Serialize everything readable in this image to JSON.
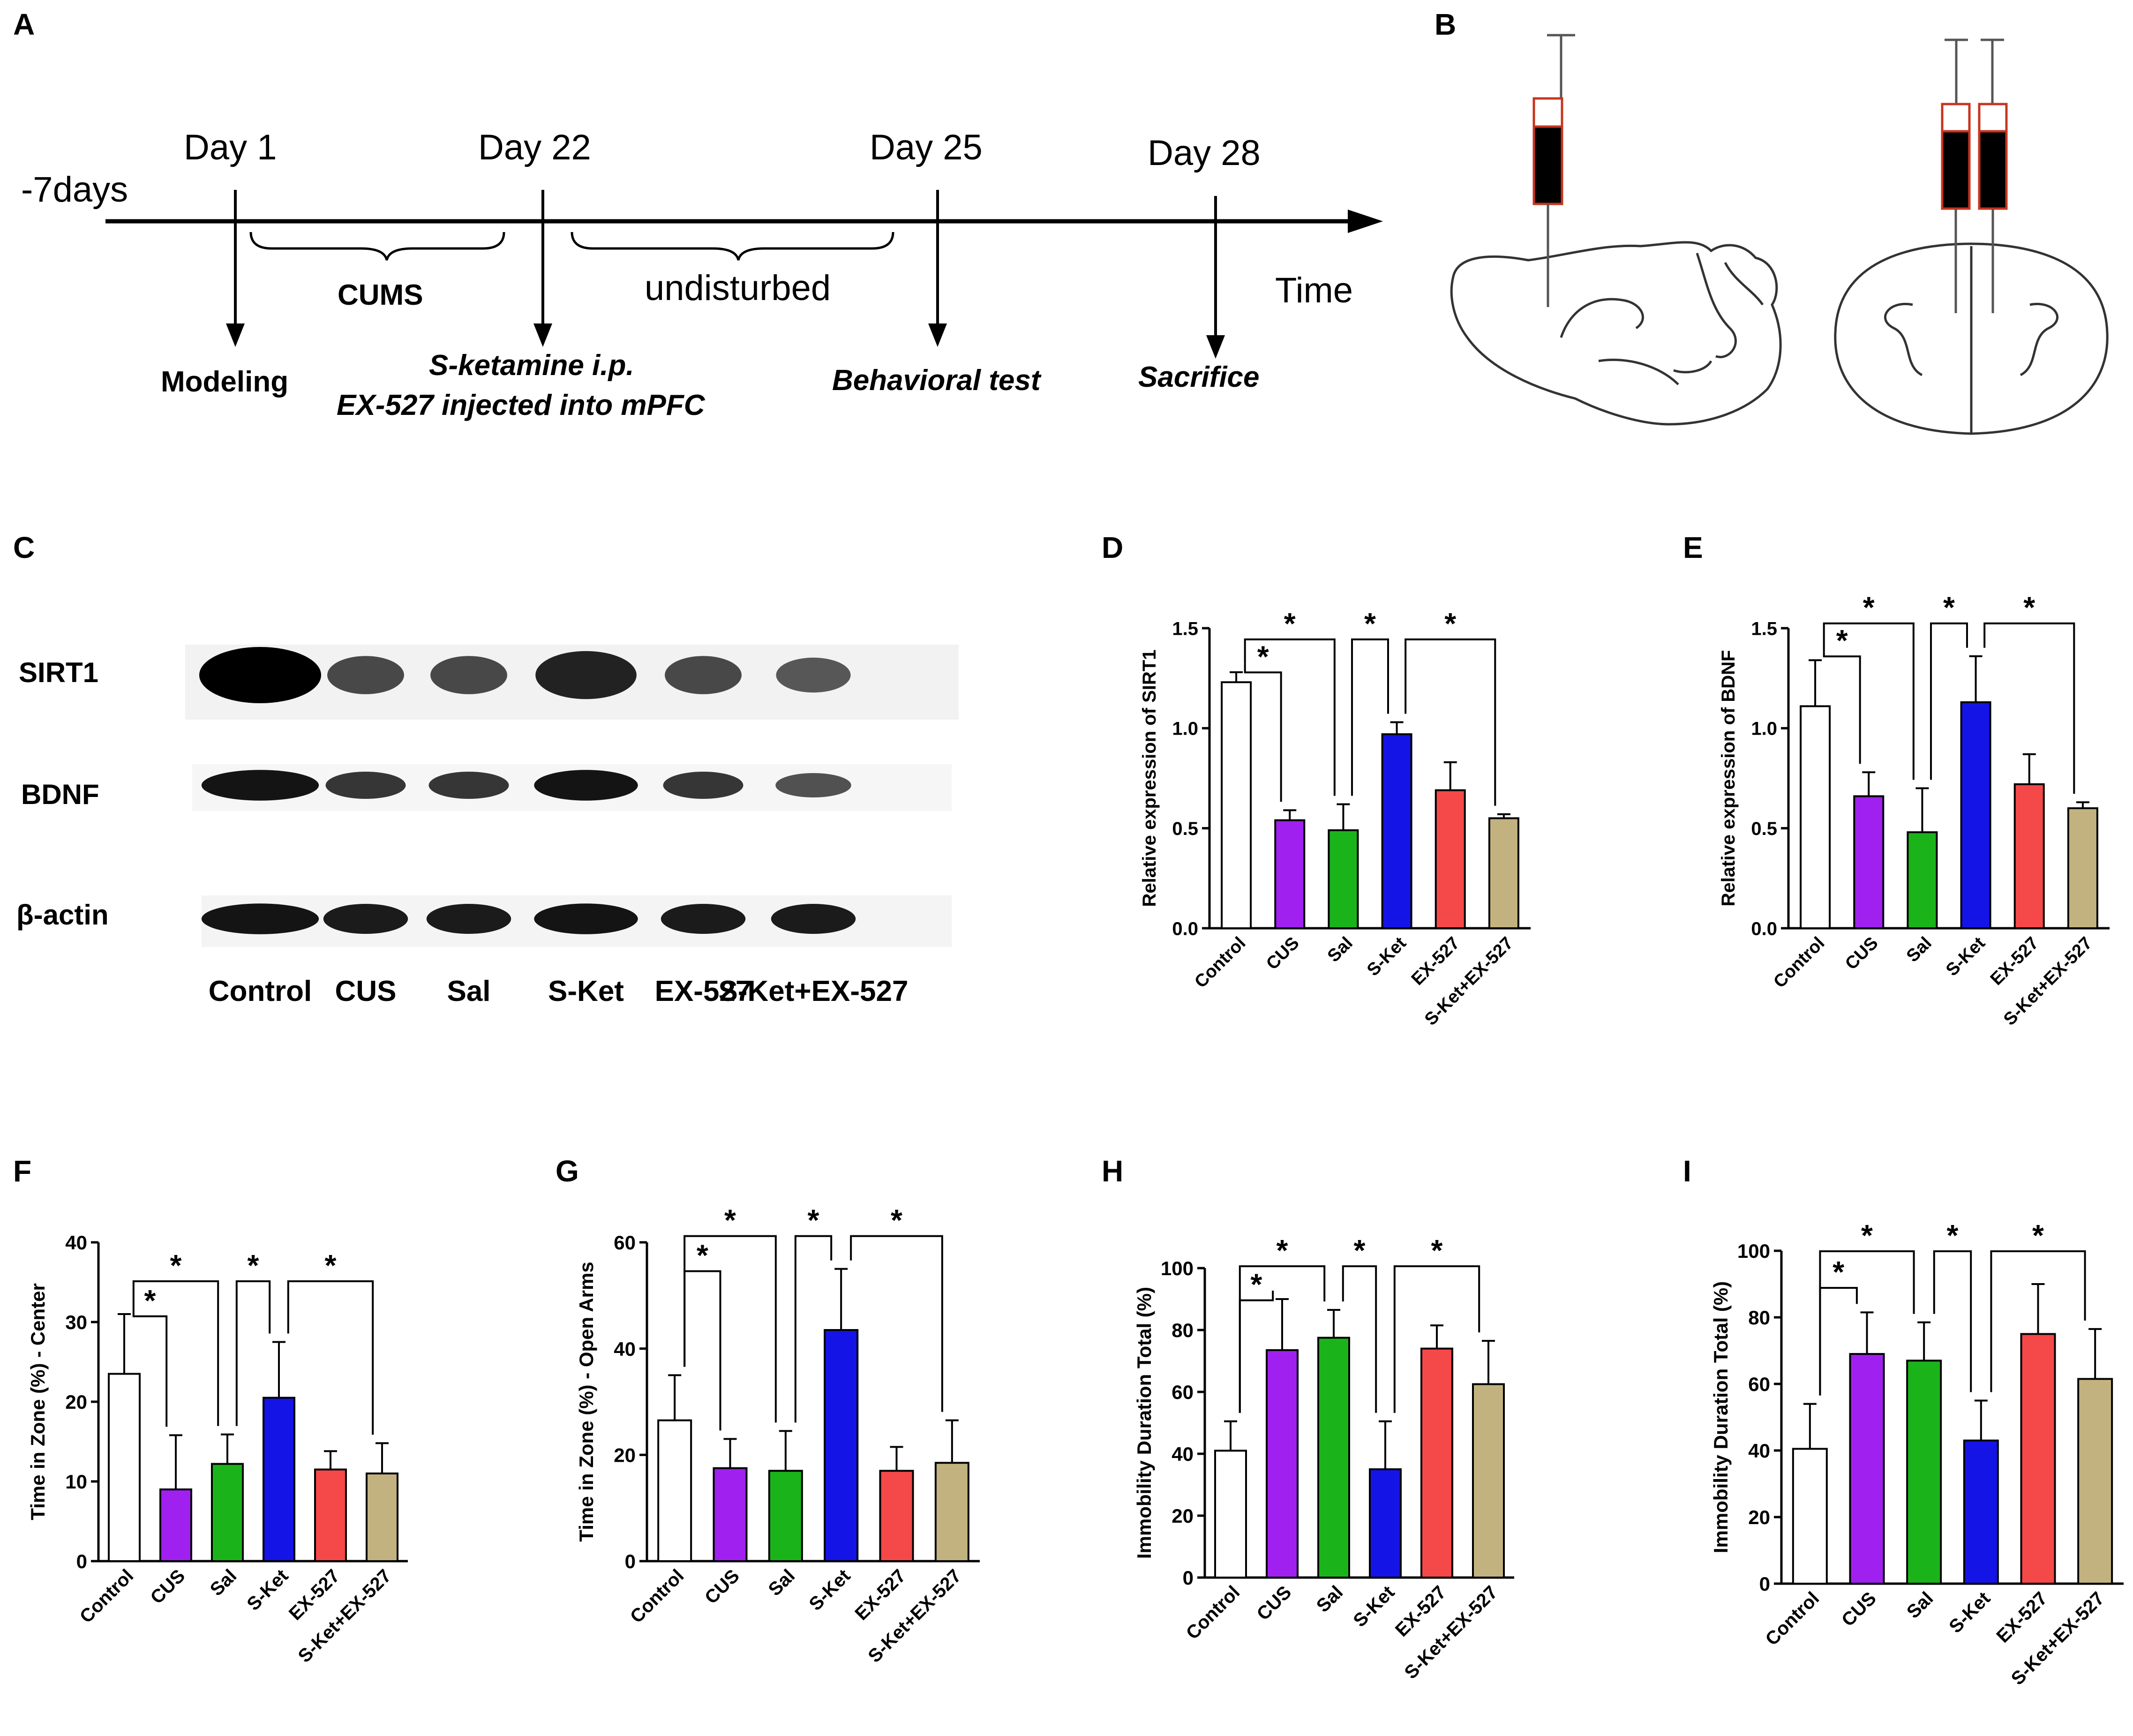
{
  "panel_letters": [
    "A",
    "B",
    "C",
    "D",
    "E",
    "F",
    "G",
    "H",
    "I"
  ],
  "panel_A": {
    "pre_label": "-7days",
    "days": [
      "Day 1",
      "Day 22",
      "Day 25",
      "Day 28"
    ],
    "braces": [
      "CUMS",
      "undisturbed"
    ],
    "time_label": "Time",
    "events": [
      "Modeling",
      "S-ketamine i.p.",
      "EX-527 injected into  mPFC",
      "Behavioral test",
      "Sacrifice"
    ]
  },
  "panel_C": {
    "proteins": [
      "SIRT1",
      "BDNF",
      "β-actin"
    ],
    "lanes": [
      "Control",
      "CUS",
      "Sal",
      "S-Ket",
      "EX-527",
      "S-Ket+EX-527"
    ],
    "band_intensity": {
      "SIRT1": [
        1.0,
        0.45,
        0.45,
        0.75,
        0.45,
        0.35
      ],
      "BDNF": [
        0.85,
        0.6,
        0.6,
        0.85,
        0.6,
        0.4
      ],
      "β-actin": [
        0.85,
        0.8,
        0.8,
        0.85,
        0.8,
        0.8
      ]
    }
  },
  "colors": {
    "groups": [
      "#ffffff",
      "#a020f0",
      "#1ab41a",
      "#1414e6",
      "#f54848",
      "#c2b27f"
    ],
    "axis": "#000000",
    "syringe_outline": "#c8341e"
  },
  "chart_data": [
    {
      "panel": "D",
      "type": "bar",
      "categories": [
        "Control",
        "CUS",
        "Sal",
        "S-Ket",
        "EX-527",
        "S-Ket+EX-527"
      ],
      "values": [
        1.23,
        0.54,
        0.49,
        0.97,
        0.69,
        0.55
      ],
      "errors": [
        0.05,
        0.05,
        0.13,
        0.06,
        0.14,
        0.02
      ],
      "ylabel": "Relative expression of SIRT1",
      "ylim": [
        0,
        1.5
      ],
      "yticks": [
        "0.0",
        "0.5",
        "1.0",
        "1.5"
      ],
      "significance": [
        "*",
        "*",
        "*",
        "*"
      ]
    },
    {
      "panel": "E",
      "type": "bar",
      "categories": [
        "Control",
        "CUS",
        "Sal",
        "S-Ket",
        "EX-527",
        "S-Ket+EX-527"
      ],
      "values": [
        1.11,
        0.66,
        0.48,
        1.13,
        0.72,
        0.6
      ],
      "errors": [
        0.23,
        0.12,
        0.22,
        0.23,
        0.15,
        0.03
      ],
      "ylabel": "Relative expression of BDNF",
      "ylim": [
        0,
        1.5
      ],
      "yticks": [
        "0.0",
        "0.5",
        "1.0",
        "1.5"
      ],
      "significance": [
        "*",
        "*",
        "*",
        "*"
      ]
    },
    {
      "panel": "F",
      "type": "bar",
      "categories": [
        "Control",
        "CUS",
        "Sal",
        "S-Ket",
        "EX-527",
        "S-Ket+EX-527"
      ],
      "values": [
        23.5,
        9,
        12.2,
        20.5,
        11.5,
        11
      ],
      "errors": [
        7.5,
        6.8,
        3.7,
        7,
        2.3,
        3.8
      ],
      "ylabel": "Time in Zone (%) - Center",
      "ylim": [
        0,
        40
      ],
      "yticks": [
        "0",
        "10",
        "20",
        "30",
        "40"
      ],
      "significance": [
        "*",
        "*",
        "*",
        "*"
      ]
    },
    {
      "panel": "G",
      "type": "bar",
      "categories": [
        "Control",
        "CUS",
        "Sal",
        "S-Ket",
        "EX-527",
        "S-Ket+EX-527"
      ],
      "values": [
        26.5,
        17.5,
        17,
        43.5,
        17,
        18.5
      ],
      "errors": [
        8.5,
        5.5,
        7.5,
        11.5,
        4.5,
        8
      ],
      "ylabel": "Time in Zone (%) - Open Arms",
      "ylim": [
        0,
        60
      ],
      "yticks": [
        "0",
        "20",
        "40",
        "60"
      ],
      "significance": [
        "*",
        "*",
        "*",
        "*"
      ]
    },
    {
      "panel": "H",
      "type": "bar",
      "categories": [
        "Control",
        "CUS",
        "Sal",
        "S-Ket",
        "EX-527",
        "S-Ket+EX-527"
      ],
      "values": [
        41,
        73.5,
        77.5,
        35,
        74,
        62.5
      ],
      "errors": [
        9.5,
        16.5,
        9,
        15.5,
        7.5,
        14
      ],
      "ylabel": "Immobility Duration Total (%)",
      "ylim": [
        0,
        100
      ],
      "yticks": [
        "0",
        "20",
        "40",
        "60",
        "80",
        "100"
      ],
      "significance": [
        "*",
        "*",
        "*",
        "*"
      ]
    },
    {
      "panel": "I",
      "type": "bar",
      "categories": [
        "Control",
        "CUS",
        "Sal",
        "S-Ket",
        "EX-527",
        "S-Ket+EX-527"
      ],
      "values": [
        40.5,
        69,
        67,
        43,
        75,
        61.5
      ],
      "errors": [
        13.5,
        12.5,
        11.5,
        12,
        15,
        15
      ],
      "ylabel": "Immobility Duration Total (%)",
      "ylim": [
        0,
        100
      ],
      "yticks": [
        "0",
        "20",
        "40",
        "60",
        "80",
        "100"
      ],
      "significance": [
        "*",
        "*",
        "*",
        "*"
      ]
    }
  ]
}
